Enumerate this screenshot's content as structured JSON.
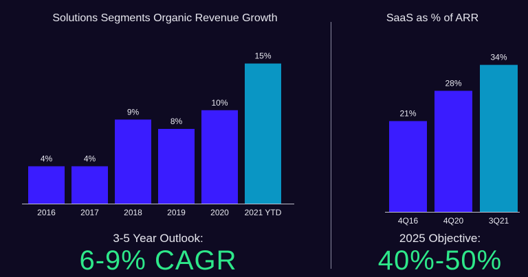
{
  "left": {
    "outlook_label": "3-5 Year Outlook:",
    "outlook_value": "6-9% CAGR"
  },
  "right": {
    "outlook_label": "2025 Objective:",
    "outlook_value": "40%-50%"
  },
  "colors": {
    "background": "#0e0a22",
    "bar_primary": "#3a1cff",
    "bar_highlight": "#0a96c4",
    "accent_green": "#2ee88a",
    "text": "#e6e6ee"
  },
  "chart_data": [
    {
      "type": "bar",
      "title": "Solutions Segments Organic Revenue Growth",
      "categories": [
        "2016",
        "2017",
        "2018",
        "2019",
        "2020",
        "2021 YTD"
      ],
      "values": [
        4,
        4,
        9,
        8,
        10,
        15
      ],
      "labels": [
        "4%",
        "4%",
        "9%",
        "8%",
        "10%",
        "15%"
      ],
      "highlight_index": 5,
      "ylim": [
        0,
        16
      ],
      "xlabel": "",
      "ylabel": "",
      "grid": false
    },
    {
      "type": "bar",
      "title": "SaaS as % of ARR",
      "categories": [
        "4Q16",
        "4Q20",
        "3Q21"
      ],
      "values": [
        21,
        28,
        34
      ],
      "labels": [
        "21%",
        "28%",
        "34%"
      ],
      "highlight_index": 2,
      "ylim": [
        0,
        36
      ],
      "xlabel": "",
      "ylabel": "",
      "grid": false
    }
  ]
}
